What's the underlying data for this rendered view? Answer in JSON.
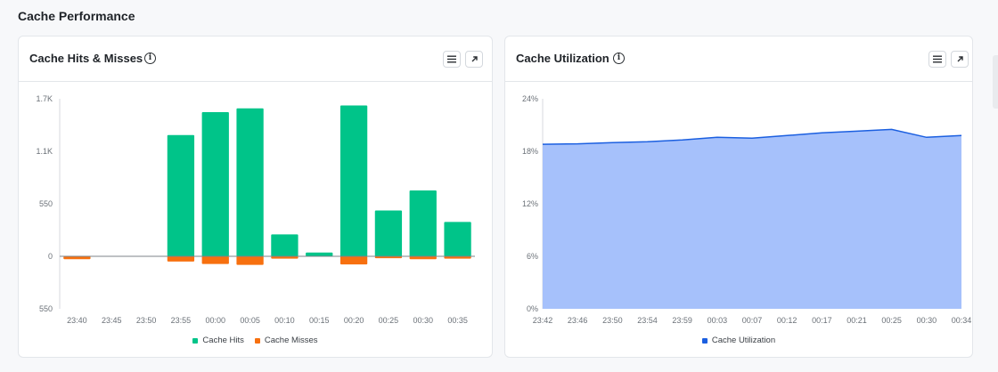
{
  "page": {
    "section_title": "Cache Performance"
  },
  "panels": {
    "hits_misses": {
      "title": "Cache Hits & Misses",
      "info_icon": "info-icon",
      "menu_icon": "menu-icon",
      "expand_icon": "expand-arrow-icon"
    },
    "utilization": {
      "title": "Cache Utilization",
      "info_icon": "info-icon",
      "menu_icon": "menu-icon",
      "expand_icon": "expand-arrow-icon"
    }
  },
  "colors": {
    "hits": "#00c489",
    "misses": "#f7700f",
    "utilization_line": "#1b5fe0",
    "utilization_fill": "#a6c1fb"
  },
  "chart_data": [
    {
      "type": "bar",
      "categories": [
        "23:40",
        "23:45",
        "23:50",
        "23:55",
        "00:00",
        "00:05",
        "00:10",
        "00:15",
        "00:20",
        "00:25",
        "00:30",
        "00:35"
      ],
      "series": [
        {
          "name": "Cache Hits",
          "values": [
            0,
            0,
            0,
            1270,
            1510,
            1550,
            230,
            40,
            1580,
            480,
            690,
            360
          ]
        },
        {
          "name": "Cache Misses",
          "values": [
            -30,
            0,
            0,
            -55,
            -80,
            -90,
            -25,
            0,
            -85,
            -20,
            -30,
            -25
          ]
        }
      ],
      "y_ticks": [
        "1.7K",
        "1.1K",
        "550",
        "0",
        "550"
      ],
      "ylim": [
        -550,
        1650
      ],
      "grid": false,
      "legend": "bottom-center"
    },
    {
      "type": "area",
      "x": [
        "23:42",
        "23:46",
        "23:50",
        "23:54",
        "23:59",
        "00:03",
        "00:07",
        "00:12",
        "00:17",
        "00:21",
        "00:25",
        "00:30",
        "00:34"
      ],
      "series": [
        {
          "name": "Cache Utilization",
          "values": [
            18.8,
            18.85,
            19.0,
            19.1,
            19.3,
            19.6,
            19.5,
            19.8,
            20.1,
            20.3,
            20.5,
            19.6,
            19.8
          ]
        }
      ],
      "y_ticks": [
        "24%",
        "18%",
        "12%",
        "6%",
        "0%"
      ],
      "ylim": [
        0,
        24
      ],
      "grid": false,
      "legend": "bottom-center"
    }
  ],
  "legend": {
    "hits_label": "Cache Hits",
    "misses_label": "Cache Misses",
    "utilization_label": "Cache Utilization"
  }
}
